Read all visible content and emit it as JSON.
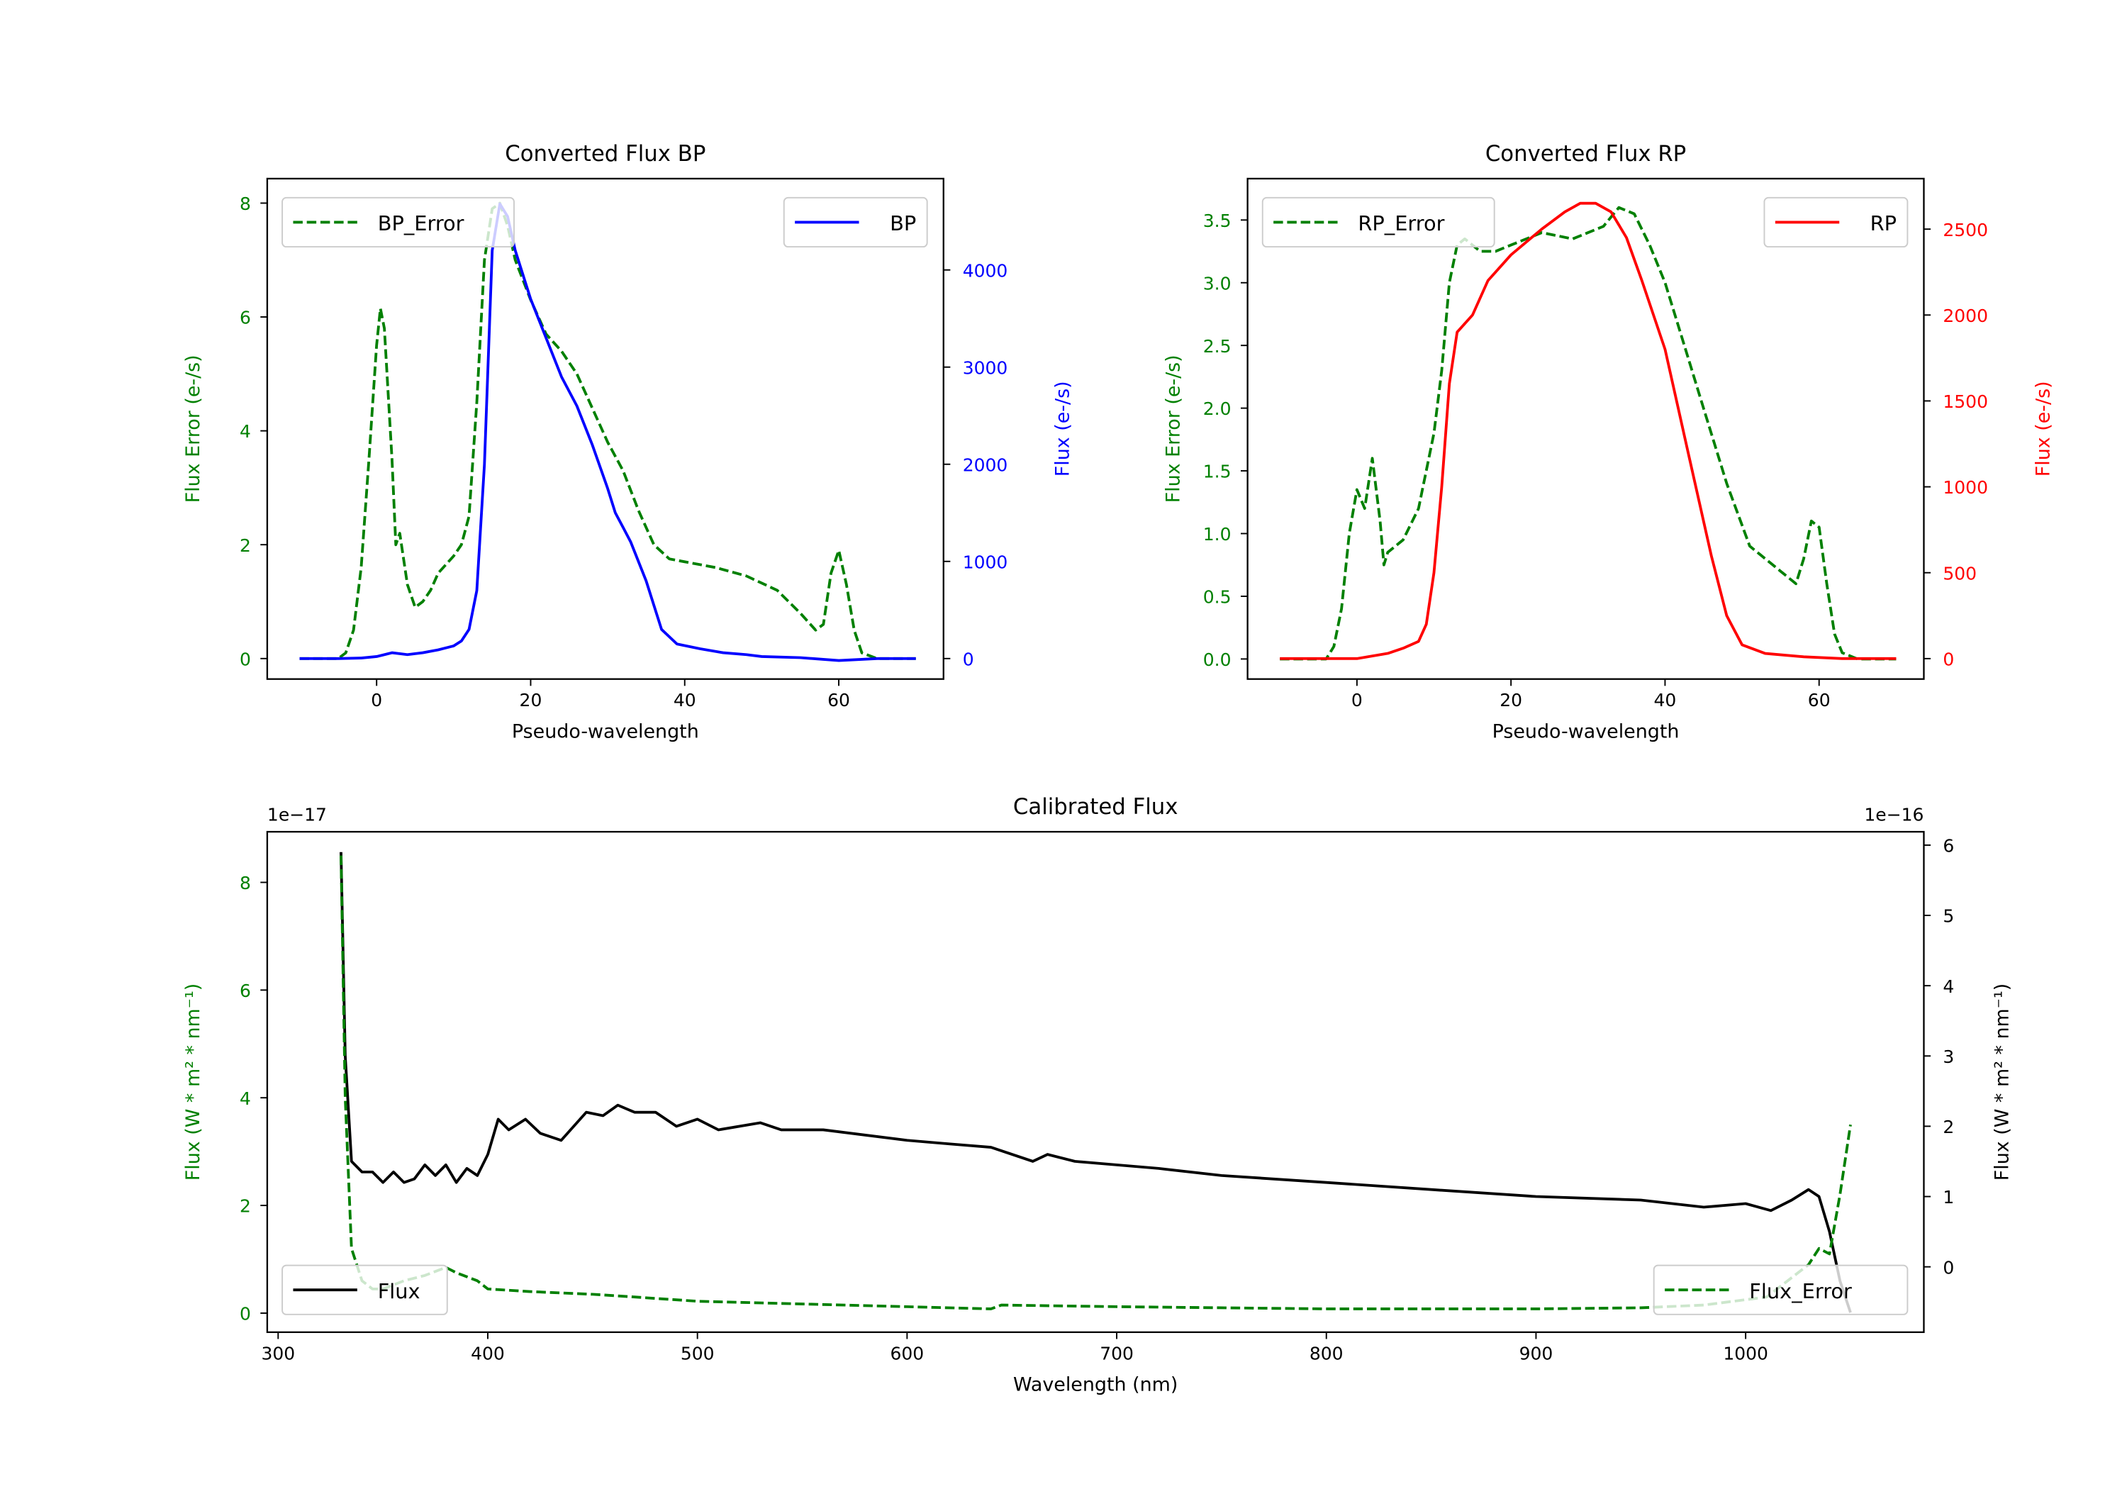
{
  "chart_data": [
    {
      "type": "line",
      "title": "Converted Flux BP",
      "xlabel": "Pseudo-wavelength",
      "ylabel": "Flux Error (e-/s)",
      "y2label": "Flux (e-/s)",
      "xlim": [
        -14.2,
        73.6
      ],
      "ylim": [
        -0.36,
        8.43
      ],
      "y2lim": [
        -211,
        4940
      ],
      "xticks": [
        0,
        20,
        40,
        60
      ],
      "yticks": [
        0,
        2,
        4,
        6,
        8
      ],
      "y2ticks": [
        0,
        1000,
        2000,
        3000,
        4000
      ],
      "ylabel_color": "#008000",
      "y2label_color": "#0000ff",
      "offset_left": "",
      "offset_right": "",
      "series": [
        {
          "name": "BP_Error",
          "axis": "left",
          "color": "#008000",
          "dashed": true,
          "legend": "upper left",
          "x": [
            -10,
            -5,
            -4,
            -3,
            -2,
            -1,
            0,
            0.5,
            1,
            2,
            2.5,
            3,
            4,
            5,
            6,
            7,
            8,
            10,
            11,
            12,
            13,
            14,
            15,
            16,
            17,
            18,
            20,
            22,
            24,
            26,
            28,
            30,
            32,
            34,
            36,
            38,
            40,
            44,
            48,
            52,
            55,
            57,
            58,
            59,
            60,
            61,
            62,
            63,
            65,
            70
          ],
          "y": [
            0,
            0,
            0.1,
            0.5,
            1.6,
            3.5,
            5.5,
            6.15,
            5.8,
            3.5,
            2.0,
            2.2,
            1.3,
            0.9,
            1.0,
            1.2,
            1.5,
            1.8,
            2.0,
            2.5,
            4.5,
            7.0,
            7.9,
            8.0,
            7.6,
            7.0,
            6.3,
            5.7,
            5.4,
            5.0,
            4.4,
            3.8,
            3.3,
            2.6,
            2.0,
            1.75,
            1.7,
            1.6,
            1.45,
            1.2,
            0.8,
            0.5,
            0.6,
            1.5,
            1.9,
            1.3,
            0.5,
            0.1,
            0,
            0
          ]
        },
        {
          "name": "BP",
          "axis": "right",
          "color": "#0000ff",
          "dashed": false,
          "legend": "upper right",
          "x": [
            -10,
            -5,
            -2,
            0,
            2,
            4,
            6,
            8,
            10,
            11,
            12,
            13,
            14,
            15,
            16,
            17,
            18,
            20,
            22,
            24,
            26,
            28,
            30,
            31,
            32,
            33,
            35,
            37,
            39,
            42,
            45,
            48,
            50,
            55,
            60,
            65,
            70
          ],
          "y": [
            0,
            0,
            5,
            20,
            60,
            40,
            60,
            90,
            130,
            180,
            300,
            700,
            2000,
            4200,
            4680,
            4550,
            4200,
            3700,
            3300,
            2900,
            2600,
            2200,
            1750,
            1500,
            1350,
            1200,
            800,
            300,
            150,
            100,
            60,
            40,
            20,
            10,
            -20,
            0,
            0
          ]
        }
      ]
    },
    {
      "type": "line",
      "title": "Converted Flux RP",
      "xlabel": "Pseudo-wavelength",
      "ylabel": "Flux Error (e-/s)",
      "y2label": "Flux (e-/s)",
      "xlim": [
        -14.2,
        73.6
      ],
      "ylim": [
        -0.16,
        3.83
      ],
      "y2lim": [
        -119,
        2794
      ],
      "xticks": [
        0,
        20,
        40,
        60
      ],
      "yticks": [
        0.0,
        0.5,
        1.0,
        1.5,
        2.0,
        2.5,
        3.0,
        3.5
      ],
      "y2ticks": [
        0,
        500,
        1000,
        1500,
        2000,
        2500
      ],
      "ylabel_color": "#008000",
      "y2label_color": "#ff0000",
      "offset_left": "",
      "offset_right": "",
      "series": [
        {
          "name": "RP_Error",
          "axis": "left",
          "color": "#008000",
          "dashed": true,
          "legend": "upper left",
          "x": [
            -10,
            -4,
            -3,
            -2,
            -1,
            0,
            1,
            2,
            3,
            3.5,
            4,
            6,
            8,
            10,
            11,
            12,
            13,
            14,
            16,
            18,
            20,
            24,
            28,
            32,
            34,
            36,
            38,
            40,
            42,
            45,
            48,
            51,
            55,
            57,
            58,
            59,
            60,
            61,
            62,
            63,
            65,
            70
          ],
          "y": [
            0,
            0,
            0.1,
            0.4,
            1.0,
            1.35,
            1.2,
            1.6,
            1.1,
            0.75,
            0.85,
            0.95,
            1.2,
            1.8,
            2.3,
            3.0,
            3.3,
            3.35,
            3.25,
            3.25,
            3.3,
            3.4,
            3.35,
            3.45,
            3.6,
            3.55,
            3.3,
            3.0,
            2.6,
            2.0,
            1.4,
            0.9,
            0.7,
            0.6,
            0.8,
            1.1,
            1.05,
            0.6,
            0.2,
            0.05,
            0,
            0
          ]
        },
        {
          "name": "RP",
          "axis": "right",
          "color": "#ff0000",
          "dashed": false,
          "legend": "upper right",
          "x": [
            -10,
            0,
            4,
            6,
            8,
            9,
            10,
            11,
            12,
            13,
            15,
            17,
            20,
            24,
            27,
            29,
            31,
            33,
            35,
            37,
            40,
            43,
            46,
            48,
            50,
            53,
            58,
            63,
            70
          ],
          "y": [
            0,
            0,
            30,
            60,
            100,
            200,
            500,
            1000,
            1600,
            1900,
            2000,
            2200,
            2350,
            2500,
            2600,
            2650,
            2650,
            2600,
            2450,
            2200,
            1800,
            1200,
            600,
            250,
            80,
            30,
            10,
            0,
            0
          ]
        }
      ]
    },
    {
      "type": "line",
      "title": "Calibrated Flux",
      "xlabel": "Wavelength (nm)",
      "ylabel": "Flux (W * m² * nm⁻¹)",
      "y2label": "Flux (W * m² * nm⁻¹)",
      "xlim": [
        294.8,
        1085
      ],
      "ylim": [
        -0.354,
        8.94
      ],
      "y2lim": [
        -0.93,
        6.19
      ],
      "xticks": [
        300,
        400,
        500,
        600,
        700,
        800,
        900,
        1000
      ],
      "yticks": [
        0,
        2,
        4,
        6,
        8
      ],
      "y2ticks": [
        0,
        1,
        2,
        3,
        4,
        5,
        6
      ],
      "ylabel_color": "#008000",
      "y2label_color": "#000000",
      "offset_left": "1e−17",
      "offset_right": "1e−16",
      "series": [
        {
          "name": "Flux",
          "axis": "right",
          "color": "#000000",
          "dashed": false,
          "legend": "lower left",
          "x": [
            330,
            332,
            335,
            340,
            345,
            350,
            355,
            360,
            365,
            370,
            375,
            380,
            385,
            390,
            395,
            400,
            405,
            410,
            418,
            425,
            435,
            447,
            455,
            462,
            470,
            480,
            490,
            500,
            510,
            530,
            540,
            560,
            600,
            620,
            640,
            660,
            667,
            680,
            700,
            720,
            750,
            800,
            850,
            900,
            950,
            980,
            1000,
            1012,
            1022,
            1030,
            1035,
            1040,
            1045,
            1050
          ],
          "y": [
            5.9,
            3.0,
            1.5,
            1.35,
            1.35,
            1.2,
            1.35,
            1.2,
            1.25,
            1.45,
            1.3,
            1.45,
            1.2,
            1.4,
            1.3,
            1.6,
            2.1,
            1.95,
            2.1,
            1.9,
            1.8,
            2.2,
            2.15,
            2.3,
            2.2,
            2.2,
            2.0,
            2.1,
            1.95,
            2.05,
            1.95,
            1.95,
            1.8,
            1.75,
            1.7,
            1.5,
            1.6,
            1.5,
            1.45,
            1.4,
            1.3,
            1.2,
            1.1,
            1.0,
            0.95,
            0.85,
            0.9,
            0.8,
            0.95,
            1.1,
            1.0,
            0.5,
            -0.2,
            -0.65
          ]
        },
        {
          "name": "Flux_Error",
          "axis": "left",
          "color": "#008000",
          "dashed": true,
          "legend": "lower right",
          "x": [
            330,
            332,
            335,
            340,
            345,
            350,
            360,
            370,
            380,
            385,
            395,
            400,
            420,
            450,
            470,
            500,
            550,
            600,
            640,
            645,
            700,
            800,
            900,
            950,
            980,
            1010,
            1030,
            1035,
            1040,
            1045,
            1050
          ],
          "y": [
            8.5,
            4,
            1.2,
            0.6,
            0.45,
            0.45,
            0.6,
            0.7,
            0.85,
            0.75,
            0.6,
            0.45,
            0.4,
            0.35,
            0.3,
            0.22,
            0.17,
            0.12,
            0.08,
            0.15,
            0.12,
            0.08,
            0.08,
            0.1,
            0.15,
            0.3,
            0.9,
            1.2,
            1.1,
            2.2,
            3.5
          ]
        }
      ]
    }
  ]
}
